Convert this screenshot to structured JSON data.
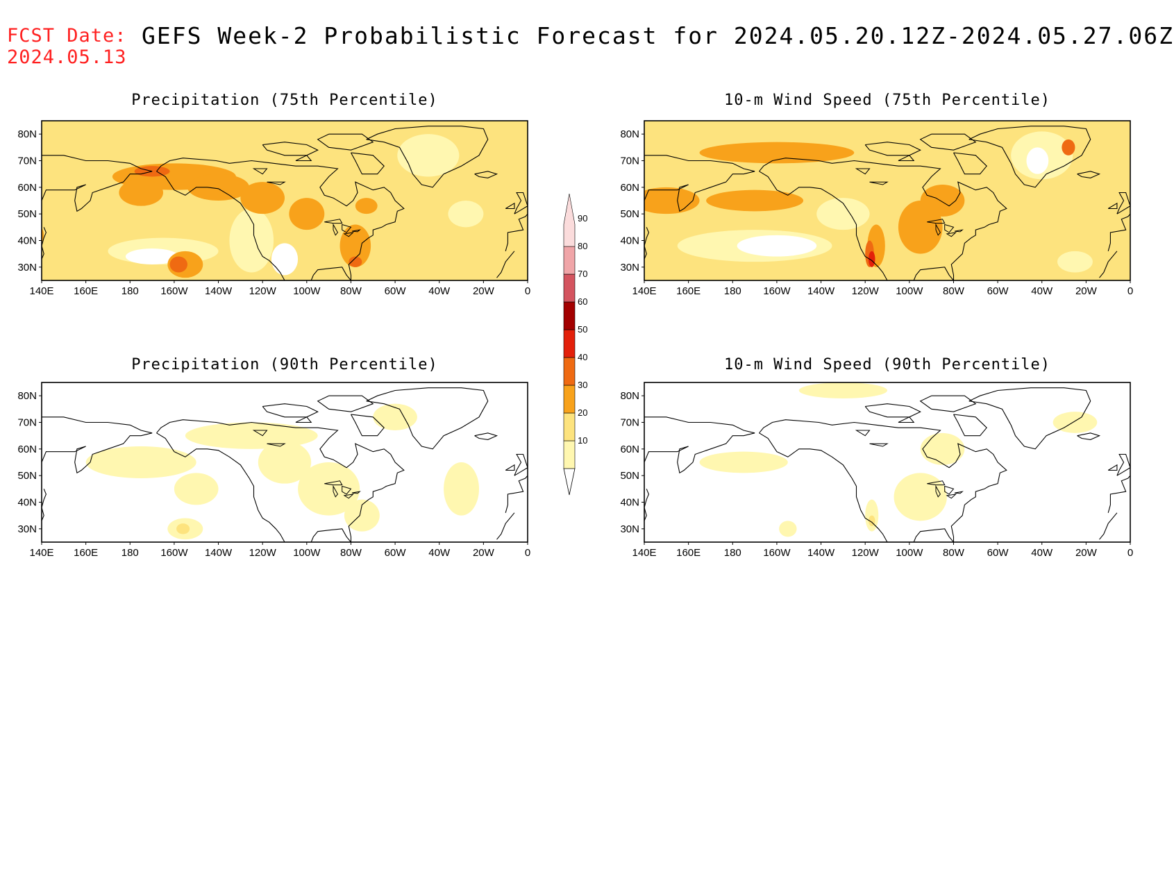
{
  "header": {
    "fcst_label": "FCST Date:",
    "fcst_date": "2024.05.13",
    "title": "GEFS Week-2 Probabilistic Forecast for 2024.05.20.12Z-2024.05.27.06Z"
  },
  "axes": {
    "lon_ticks": [
      "140E",
      "160E",
      "180",
      "160W",
      "140W",
      "120W",
      "100W",
      "80W",
      "60W",
      "40W",
      "20W",
      "0"
    ],
    "lat_ticks": [
      "80N",
      "70N",
      "60N",
      "50N",
      "40N",
      "30N"
    ]
  },
  "colorbar": {
    "levels": [
      "10",
      "20",
      "30",
      "40",
      "50",
      "60",
      "70",
      "80",
      "90"
    ],
    "colors": [
      "#fff7b0",
      "#fde37e",
      "#f8a21b",
      "#ef6a12",
      "#e3200a",
      "#a30000",
      "#d4545f",
      "#f0a5a8",
      "#fbdcdc"
    ]
  },
  "panels": [
    {
      "id": "precip75",
      "title": "Precipitation (75th Percentile)",
      "bg": "#fde37e",
      "blobs": [
        {
          "c": "#fff7b0",
          "lon": -165,
          "lat": 36,
          "rx": 25,
          "ry": 5
        },
        {
          "c": "#ffffff",
          "lon": -170,
          "lat": 34,
          "rx": 12,
          "ry": 3
        },
        {
          "c": "#fff7b0",
          "lon": -125,
          "lat": 40,
          "rx": 10,
          "ry": 12
        },
        {
          "c": "#ffffff",
          "lon": -110,
          "lat": 33,
          "rx": 6,
          "ry": 6
        },
        {
          "c": "#fff7b0",
          "lon": -45,
          "lat": 72,
          "rx": 14,
          "ry": 8
        },
        {
          "c": "#fff7b0",
          "lon": -28,
          "lat": 50,
          "rx": 8,
          "ry": 5
        },
        {
          "c": "#f8a21b",
          "lon": -160,
          "lat": 64,
          "rx": 28,
          "ry": 5
        },
        {
          "c": "#f8a21b",
          "lon": -175,
          "lat": 58,
          "rx": 10,
          "ry": 5
        },
        {
          "c": "#f8a21b",
          "lon": -140,
          "lat": 60,
          "rx": 14,
          "ry": 5
        },
        {
          "c": "#f8a21b",
          "lon": -120,
          "lat": 56,
          "rx": 10,
          "ry": 6
        },
        {
          "c": "#f8a21b",
          "lon": -100,
          "lat": 50,
          "rx": 8,
          "ry": 6
        },
        {
          "c": "#f8a21b",
          "lon": -78,
          "lat": 38,
          "rx": 7,
          "ry": 8
        },
        {
          "c": "#f8a21b",
          "lon": -155,
          "lat": 31,
          "rx": 8,
          "ry": 5
        },
        {
          "c": "#f8a21b",
          "lon": 135,
          "lat": 42,
          "rx": 6,
          "ry": 5
        },
        {
          "c": "#f8a21b",
          "lon": -73,
          "lat": 53,
          "rx": 5,
          "ry": 3
        },
        {
          "c": "#ef6a12",
          "lon": -158,
          "lat": 31,
          "rx": 4,
          "ry": 3
        },
        {
          "c": "#ef6a12",
          "lon": -170,
          "lat": 66,
          "rx": 8,
          "ry": 2
        },
        {
          "c": "#ef6a12",
          "lon": -78,
          "lat": 32,
          "rx": 3,
          "ry": 2
        }
      ]
    },
    {
      "id": "wind75",
      "title": "10-m Wind Speed (75th Percentile)",
      "bg": "#fde37e",
      "blobs": [
        {
          "c": "#fff7b0",
          "lon": -170,
          "lat": 38,
          "rx": 35,
          "ry": 6
        },
        {
          "c": "#ffffff",
          "lon": -160,
          "lat": 38,
          "rx": 18,
          "ry": 4
        },
        {
          "c": "#fff7b0",
          "lon": -130,
          "lat": 50,
          "rx": 12,
          "ry": 6
        },
        {
          "c": "#fff7b0",
          "lon": -40,
          "lat": 72,
          "rx": 14,
          "ry": 9
        },
        {
          "c": "#ffffff",
          "lon": -42,
          "lat": 70,
          "rx": 5,
          "ry": 5
        },
        {
          "c": "#fff7b0",
          "lon": -25,
          "lat": 32,
          "rx": 8,
          "ry": 4
        },
        {
          "c": "#f8a21b",
          "lon": 150,
          "lat": 55,
          "rx": 15,
          "ry": 5
        },
        {
          "c": "#f8a21b",
          "lon": -170,
          "lat": 55,
          "rx": 22,
          "ry": 4
        },
        {
          "c": "#f8a21b",
          "lon": -160,
          "lat": 73,
          "rx": 35,
          "ry": 4
        },
        {
          "c": "#f8a21b",
          "lon": -95,
          "lat": 45,
          "rx": 10,
          "ry": 10
        },
        {
          "c": "#f8a21b",
          "lon": -115,
          "lat": 38,
          "rx": 4,
          "ry": 8
        },
        {
          "c": "#f8a21b",
          "lon": -85,
          "lat": 55,
          "rx": 10,
          "ry": 6
        },
        {
          "c": "#ef6a12",
          "lon": -118,
          "lat": 35,
          "rx": 2,
          "ry": 5
        },
        {
          "c": "#e3200a",
          "lon": -117,
          "lat": 33,
          "rx": 1.5,
          "ry": 3
        },
        {
          "c": "#ef6a12",
          "lon": -28,
          "lat": 75,
          "rx": 3,
          "ry": 3
        }
      ]
    },
    {
      "id": "precip90",
      "title": "Precipitation (90th Percentile)",
      "bg": "#ffffff",
      "blobs": [
        {
          "c": "#fff7b0",
          "lon": -175,
          "lat": 55,
          "rx": 25,
          "ry": 6
        },
        {
          "c": "#fff7b0",
          "lon": -150,
          "lat": 45,
          "rx": 10,
          "ry": 6
        },
        {
          "c": "#fff7b0",
          "lon": -125,
          "lat": 65,
          "rx": 30,
          "ry": 5
        },
        {
          "c": "#fff7b0",
          "lon": -110,
          "lat": 55,
          "rx": 12,
          "ry": 8
        },
        {
          "c": "#fff7b0",
          "lon": -90,
          "lat": 45,
          "rx": 14,
          "ry": 10
        },
        {
          "c": "#fff7b0",
          "lon": -75,
          "lat": 35,
          "rx": 8,
          "ry": 6
        },
        {
          "c": "#fff7b0",
          "lon": -30,
          "lat": 45,
          "rx": 8,
          "ry": 10
        },
        {
          "c": "#fff7b0",
          "lon": -155,
          "lat": 30,
          "rx": 8,
          "ry": 4
        },
        {
          "c": "#fde37e",
          "lon": -156,
          "lat": 30,
          "rx": 3,
          "ry": 2
        },
        {
          "c": "#fff7b0",
          "lon": -60,
          "lat": 72,
          "rx": 10,
          "ry": 5
        }
      ]
    },
    {
      "id": "wind90",
      "title": "10-m Wind Speed (90th Percentile)",
      "bg": "#ffffff",
      "blobs": [
        {
          "c": "#fff7b0",
          "lon": -175,
          "lat": 55,
          "rx": 20,
          "ry": 4
        },
        {
          "c": "#fff7b0",
          "lon": -130,
          "lat": 82,
          "rx": 20,
          "ry": 3
        },
        {
          "c": "#fff7b0",
          "lon": -95,
          "lat": 42,
          "rx": 12,
          "ry": 9
        },
        {
          "c": "#fff7b0",
          "lon": -85,
          "lat": 60,
          "rx": 10,
          "ry": 6
        },
        {
          "c": "#fff7b0",
          "lon": -117,
          "lat": 35,
          "rx": 3,
          "ry": 6
        },
        {
          "c": "#fde37e",
          "lon": -117,
          "lat": 33,
          "rx": 1.5,
          "ry": 2
        },
        {
          "c": "#fff7b0",
          "lon": -25,
          "lat": 70,
          "rx": 10,
          "ry": 4
        },
        {
          "c": "#fff7b0",
          "lon": -155,
          "lat": 30,
          "rx": 4,
          "ry": 3
        }
      ]
    }
  ]
}
